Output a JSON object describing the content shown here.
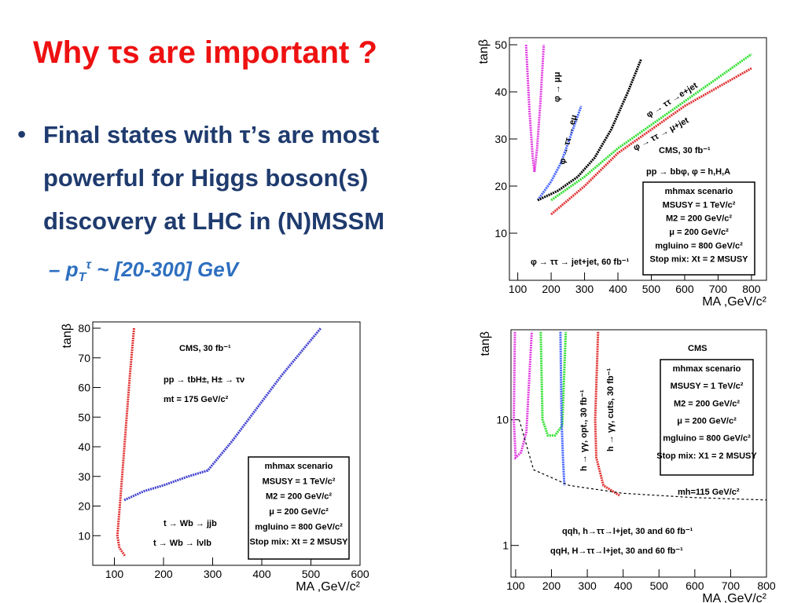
{
  "title": "Why τs are important ?",
  "bullet_lines": [
    "Final states with τ’s are most",
    "powerful for Higgs boson(s)",
    "discovery at LHC in (N)MSSM"
  ],
  "sub_bullet": {
    "dash": "–",
    "p": "p",
    "sub": "T",
    "sup": "τ",
    "rest": " ~ [20-300] GeV"
  },
  "chart_data": [
    {
      "type": "line",
      "xlabel": "MA ,GeV/c²",
      "ylabel": "tanβ",
      "xlim": [
        75,
        845
      ],
      "xticks": [
        100,
        200,
        300,
        400,
        500,
        600,
        700,
        800
      ],
      "ylim": [
        0,
        50
      ],
      "yticks": [
        10,
        20,
        30,
        40,
        50
      ],
      "series": [
        {
          "name": "φ → μμ",
          "color": "#e040e0",
          "x": [
            125,
            135,
            145,
            150,
            158,
            168,
            178
          ],
          "values": [
            50,
            36,
            26,
            23,
            28,
            38,
            50
          ]
        },
        {
          "name": "φ → ττ → eμ",
          "color": "#4060ff",
          "x": [
            160,
            180,
            200,
            230,
            260,
            290
          ],
          "values": [
            17,
            19,
            21,
            25,
            31,
            37
          ]
        },
        {
          "name": "φ → ττ →e+jet",
          "color": "#000000",
          "x": [
            160,
            220,
            280,
            330,
            380,
            430,
            470
          ],
          "values": [
            17,
            19,
            22,
            26,
            32,
            40,
            47
          ]
        },
        {
          "name": "φ → ττ → μ+jet",
          "color": "#30e030",
          "x": [
            200,
            300,
            400,
            500,
            600,
            700,
            800
          ],
          "values": [
            17,
            22,
            28,
            33,
            38,
            43,
            48
          ]
        },
        {
          "name": "φ → ττ → jet+jet, 60 fb⁻¹",
          "color": "#e03030",
          "x": [
            200,
            300,
            400,
            500,
            600,
            700,
            800
          ],
          "values": [
            14,
            20,
            27,
            32,
            37,
            41,
            45
          ]
        }
      ],
      "annotations": [
        "CMS, 30 fb⁻¹",
        "pp → bbφ, φ = h,H,A"
      ],
      "box": [
        "mhmax scenario",
        "MSUSY = 1 TeV/c²",
        "M2 = 200 GeV/c²",
        "μ = 200 GeV/c²",
        "mgluino = 800 GeV/c²",
        "Stop mix: Xt = 2 MSUSY"
      ]
    },
    {
      "type": "line",
      "xlabel": "MA ,GeV/c²",
      "ylabel": "tanβ",
      "xlim": [
        56,
        600
      ],
      "xticks": [
        100,
        200,
        300,
        400,
        500,
        600
      ],
      "ylim": [
        0,
        80
      ],
      "yticks": [
        10,
        20,
        30,
        40,
        50,
        60,
        70,
        80
      ],
      "series": [
        {
          "name": "t → Wb → lνlb",
          "color": "#e03030",
          "x": [
            140,
            132,
            125,
            118,
            112,
            106,
            110,
            122
          ],
          "values": [
            80,
            65,
            50,
            35,
            22,
            10,
            6,
            3
          ]
        },
        {
          "name": "t → Wb → jjb",
          "color": "#4040d0",
          "x": [
            120,
            160,
            200,
            250,
            290,
            340,
            390,
            440,
            480,
            520
          ],
          "values": [
            22,
            25,
            27,
            30,
            32,
            42,
            53,
            64,
            72,
            80
          ]
        }
      ],
      "annotations": [
        "CMS, 30 fb⁻¹",
        "pp → tbH±, H± → τν",
        "mt = 175 GeV/c²"
      ],
      "box": [
        "mhmax scenario",
        "MSUSY = 1 TeV/c²",
        "M2 = 200 GeV/c²",
        "μ = 200 GeV/c²",
        "mgluino = 800 GeV/c²",
        "Stop mix: Xt = 2 MSUSY"
      ]
    },
    {
      "type": "line",
      "log_y": true,
      "xlabel": "MA ,GeV/c²",
      "ylabel": "tanβ",
      "xlim": [
        87,
        800
      ],
      "xticks": [
        100,
        200,
        300,
        400,
        500,
        600,
        700,
        800
      ],
      "ylim": [
        0.56,
        52
      ],
      "yticks": [
        1,
        10
      ],
      "series": [
        {
          "name": "qqH, H→ττ→l+jet, 30 and 60 fb⁻¹",
          "color": "#e040e0",
          "x": [
            98,
            95,
            100,
            115,
            130,
            145
          ],
          "values": [
            50,
            10,
            5,
            5.5,
            8,
            50
          ]
        },
        {
          "name": "qqh, h→ττ→l+jet, 30 and 60 fb⁻¹",
          "color": "#30e030",
          "x": [
            170,
            175,
            190,
            210,
            230,
            240
          ],
          "values": [
            50,
            10,
            7.5,
            7.5,
            9,
            50
          ]
        },
        {
          "name": "h → γγ, opt., 30 fb⁻¹",
          "color": "#4060ff",
          "x": [
            225,
            228,
            232,
            236
          ],
          "values": [
            50,
            10,
            5,
            3
          ]
        },
        {
          "name": "h → γγ, cuts, 30 fb⁻¹",
          "color": "#e03030",
          "x": [
            330,
            322,
            325,
            345,
            390
          ],
          "values": [
            50,
            10,
            5,
            3,
            2.5
          ]
        },
        {
          "name": "mh=115 GeV/c²",
          "color": "#000000",
          "dashed": true,
          "x": [
            110,
            150,
            250,
            400,
            600,
            800
          ],
          "values": [
            10,
            4,
            3,
            2.6,
            2.4,
            2.3
          ]
        }
      ],
      "annotations": [
        "CMS",
        "mh=115 GeV/c²",
        "h → γγ, opt., 30 fb⁻¹",
        "h → γγ, cuts, 30 fb⁻¹",
        "qqh, h→ττ→l+jet, 30 and 60 fb⁻¹",
        "qqH, H→ττ→l+jet, 30 and 60 fb⁻¹"
      ],
      "box": [
        "mhmax scenario",
        "MSUSY = 1 TeV/c²",
        "M2 = 200 GeV/c²",
        "μ = 200 GeV/c²",
        "mgluino = 800 GeV/c²",
        "Stop mix: X1 = 2 MSUSY"
      ]
    }
  ]
}
